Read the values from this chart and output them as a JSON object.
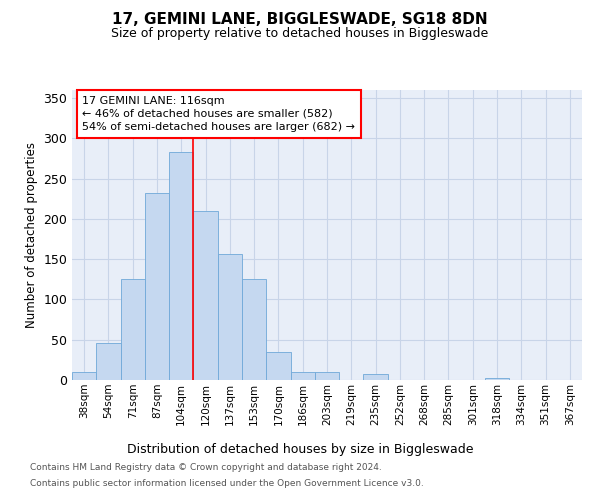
{
  "title1": "17, GEMINI LANE, BIGGLESWADE, SG18 8DN",
  "title2": "Size of property relative to detached houses in Biggleswade",
  "xlabel": "Distribution of detached houses by size in Biggleswade",
  "ylabel": "Number of detached properties",
  "bar_labels": [
    "38sqm",
    "54sqm",
    "71sqm",
    "87sqm",
    "104sqm",
    "120sqm",
    "137sqm",
    "153sqm",
    "170sqm",
    "186sqm",
    "203sqm",
    "219sqm",
    "235sqm",
    "252sqm",
    "268sqm",
    "285sqm",
    "301sqm",
    "318sqm",
    "334sqm",
    "351sqm",
    "367sqm"
  ],
  "bar_heights": [
    10,
    46,
    126,
    232,
    283,
    210,
    157,
    125,
    35,
    10,
    10,
    0,
    8,
    0,
    0,
    0,
    0,
    2,
    0,
    0,
    0
  ],
  "bar_color": "#c5d8f0",
  "bar_edge_color": "#6fa8d8",
  "grid_color": "#c8d4e8",
  "background_color": "#e8eef8",
  "annotation_line1": "17 GEMINI LANE: 116sqm",
  "annotation_line2": "← 46% of detached houses are smaller (582)",
  "annotation_line3": "54% of semi-detached houses are larger (682) →",
  "footer1": "Contains HM Land Registry data © Crown copyright and database right 2024.",
  "footer2": "Contains public sector information licensed under the Open Government Licence v3.0.",
  "ylim": [
    0,
    360
  ],
  "yticks": [
    0,
    50,
    100,
    150,
    200,
    250,
    300,
    350
  ],
  "vline_x": 5.0,
  "fig_width": 6.0,
  "fig_height": 5.0,
  "dpi": 100
}
